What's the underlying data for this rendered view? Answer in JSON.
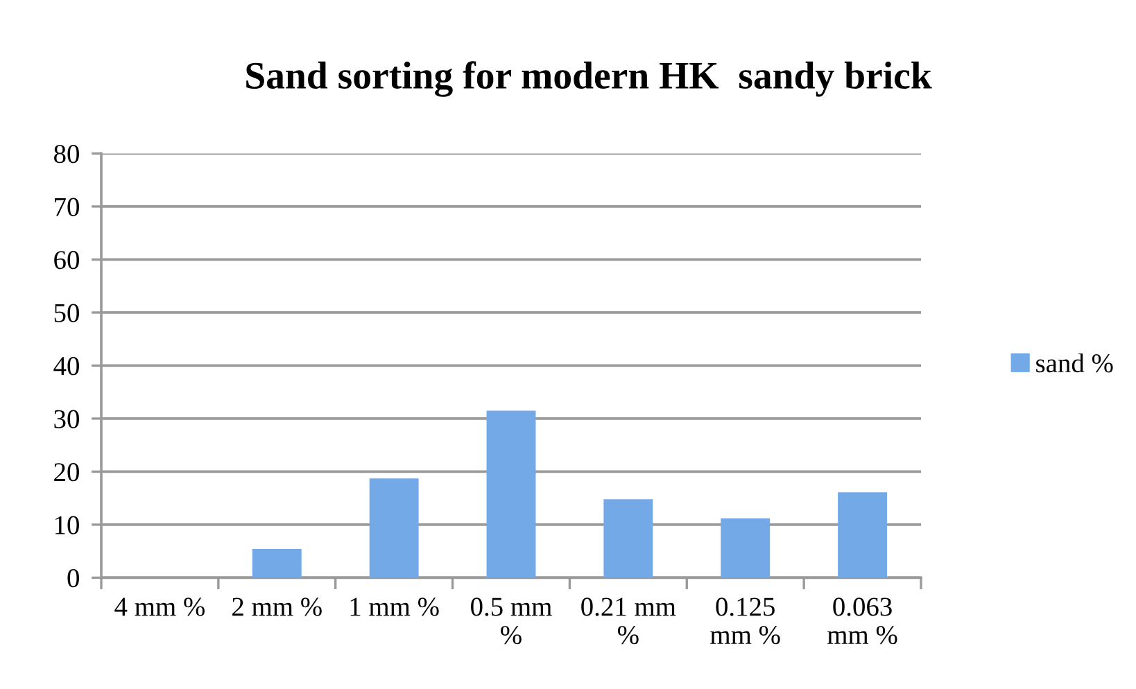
{
  "chart_data": {
    "type": "bar",
    "title": "Sand sorting for modern HK  sandy brick",
    "categories": [
      "4 mm %",
      "2 mm %",
      "1 mm %",
      "0.5 mm %",
      "0.21 mm %",
      "0.125 mm %",
      "0.063 mm %"
    ],
    "series": [
      {
        "name": "sand %",
        "color": "#74a9e8",
        "values": [
          0,
          5.4,
          18.7,
          31.5,
          14.8,
          11.2,
          16.1
        ]
      }
    ],
    "ylim": [
      0,
      80
    ],
    "yticks": [
      0,
      10,
      20,
      30,
      40,
      50,
      60,
      70,
      80
    ],
    "grid": "y",
    "legend": "right"
  }
}
